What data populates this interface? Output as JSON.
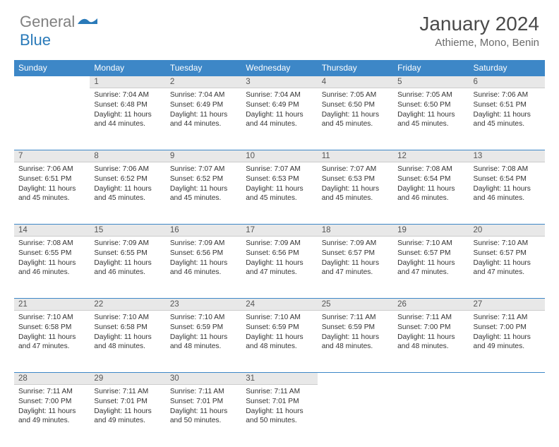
{
  "logo": {
    "gray": "General",
    "blue": "Blue"
  },
  "title": "January 2024",
  "location": "Athieme, Mono, Benin",
  "colors": {
    "header_bg": "#3d87c7",
    "header_fg": "#ffffff",
    "daynum_bg": "#e8e8e8",
    "border": "#3d87c7",
    "logo_gray": "#808080",
    "logo_blue": "#2a7ab9"
  },
  "weekdays": [
    "Sunday",
    "Monday",
    "Tuesday",
    "Wednesday",
    "Thursday",
    "Friday",
    "Saturday"
  ],
  "weeks": [
    {
      "nums": [
        "",
        "1",
        "2",
        "3",
        "4",
        "5",
        "6"
      ],
      "cells": [
        "",
        "Sunrise: 7:04 AM\nSunset: 6:48 PM\nDaylight: 11 hours and 44 minutes.",
        "Sunrise: 7:04 AM\nSunset: 6:49 PM\nDaylight: 11 hours and 44 minutes.",
        "Sunrise: 7:04 AM\nSunset: 6:49 PM\nDaylight: 11 hours and 44 minutes.",
        "Sunrise: 7:05 AM\nSunset: 6:50 PM\nDaylight: 11 hours and 45 minutes.",
        "Sunrise: 7:05 AM\nSunset: 6:50 PM\nDaylight: 11 hours and 45 minutes.",
        "Sunrise: 7:06 AM\nSunset: 6:51 PM\nDaylight: 11 hours and 45 minutes."
      ]
    },
    {
      "nums": [
        "7",
        "8",
        "9",
        "10",
        "11",
        "12",
        "13"
      ],
      "cells": [
        "Sunrise: 7:06 AM\nSunset: 6:51 PM\nDaylight: 11 hours and 45 minutes.",
        "Sunrise: 7:06 AM\nSunset: 6:52 PM\nDaylight: 11 hours and 45 minutes.",
        "Sunrise: 7:07 AM\nSunset: 6:52 PM\nDaylight: 11 hours and 45 minutes.",
        "Sunrise: 7:07 AM\nSunset: 6:53 PM\nDaylight: 11 hours and 45 minutes.",
        "Sunrise: 7:07 AM\nSunset: 6:53 PM\nDaylight: 11 hours and 45 minutes.",
        "Sunrise: 7:08 AM\nSunset: 6:54 PM\nDaylight: 11 hours and 46 minutes.",
        "Sunrise: 7:08 AM\nSunset: 6:54 PM\nDaylight: 11 hours and 46 minutes."
      ]
    },
    {
      "nums": [
        "14",
        "15",
        "16",
        "17",
        "18",
        "19",
        "20"
      ],
      "cells": [
        "Sunrise: 7:08 AM\nSunset: 6:55 PM\nDaylight: 11 hours and 46 minutes.",
        "Sunrise: 7:09 AM\nSunset: 6:55 PM\nDaylight: 11 hours and 46 minutes.",
        "Sunrise: 7:09 AM\nSunset: 6:56 PM\nDaylight: 11 hours and 46 minutes.",
        "Sunrise: 7:09 AM\nSunset: 6:56 PM\nDaylight: 11 hours and 47 minutes.",
        "Sunrise: 7:09 AM\nSunset: 6:57 PM\nDaylight: 11 hours and 47 minutes.",
        "Sunrise: 7:10 AM\nSunset: 6:57 PM\nDaylight: 11 hours and 47 minutes.",
        "Sunrise: 7:10 AM\nSunset: 6:57 PM\nDaylight: 11 hours and 47 minutes."
      ]
    },
    {
      "nums": [
        "21",
        "22",
        "23",
        "24",
        "25",
        "26",
        "27"
      ],
      "cells": [
        "Sunrise: 7:10 AM\nSunset: 6:58 PM\nDaylight: 11 hours and 47 minutes.",
        "Sunrise: 7:10 AM\nSunset: 6:58 PM\nDaylight: 11 hours and 48 minutes.",
        "Sunrise: 7:10 AM\nSunset: 6:59 PM\nDaylight: 11 hours and 48 minutes.",
        "Sunrise: 7:10 AM\nSunset: 6:59 PM\nDaylight: 11 hours and 48 minutes.",
        "Sunrise: 7:11 AM\nSunset: 6:59 PM\nDaylight: 11 hours and 48 minutes.",
        "Sunrise: 7:11 AM\nSunset: 7:00 PM\nDaylight: 11 hours and 48 minutes.",
        "Sunrise: 7:11 AM\nSunset: 7:00 PM\nDaylight: 11 hours and 49 minutes."
      ]
    },
    {
      "nums": [
        "28",
        "29",
        "30",
        "31",
        "",
        "",
        ""
      ],
      "cells": [
        "Sunrise: 7:11 AM\nSunset: 7:00 PM\nDaylight: 11 hours and 49 minutes.",
        "Sunrise: 7:11 AM\nSunset: 7:01 PM\nDaylight: 11 hours and 49 minutes.",
        "Sunrise: 7:11 AM\nSunset: 7:01 PM\nDaylight: 11 hours and 50 minutes.",
        "Sunrise: 7:11 AM\nSunset: 7:01 PM\nDaylight: 11 hours and 50 minutes.",
        "",
        "",
        ""
      ]
    }
  ]
}
